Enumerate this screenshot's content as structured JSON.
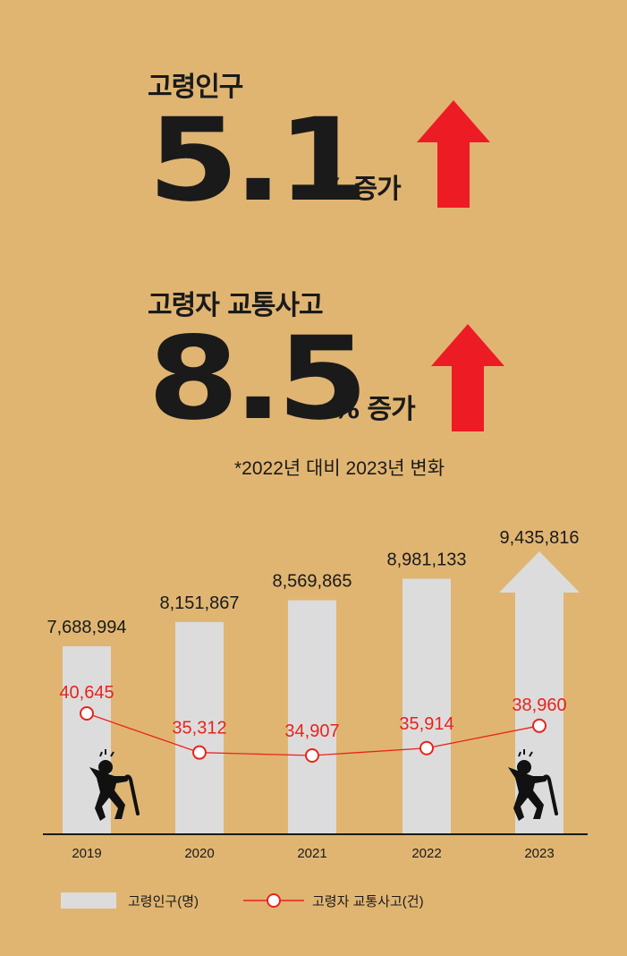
{
  "stat1": {
    "label": "고령인구",
    "value": "5.1",
    "suffix": "% 증가"
  },
  "stat2": {
    "label": "고령자 교통사고",
    "value": "8.5",
    "suffix": "% 증가"
  },
  "note": "*2022년 대비 2023년 변화",
  "colors": {
    "background": "#e0b572",
    "bar": "#dcdcdc",
    "line": "#e8231c",
    "arrow": "#ed1c24",
    "text": "#1a1a1a"
  },
  "icons": [
    "arrow-up-icon",
    "elderly-fall-icon"
  ],
  "chart_data": {
    "type": "bar",
    "categories": [
      "2019",
      "2020",
      "2021",
      "2022",
      "2023"
    ],
    "series": [
      {
        "name": "고령인구(명)",
        "type": "bar",
        "values": [
          7688994,
          8151867,
          8569865,
          8981133,
          9435816
        ],
        "labels": [
          "7,688,994",
          "8,151,867",
          "8,569,865",
          "8,981,133",
          "9,435,816"
        ]
      },
      {
        "name": "고령자 교통사고(건)",
        "type": "line",
        "values": [
          40645,
          35312,
          34907,
          35914,
          38960
        ],
        "labels": [
          "40,645",
          "35,312",
          "34,907",
          "35,914",
          "38,960"
        ]
      }
    ],
    "legend": {
      "position": "bottom-left"
    }
  }
}
